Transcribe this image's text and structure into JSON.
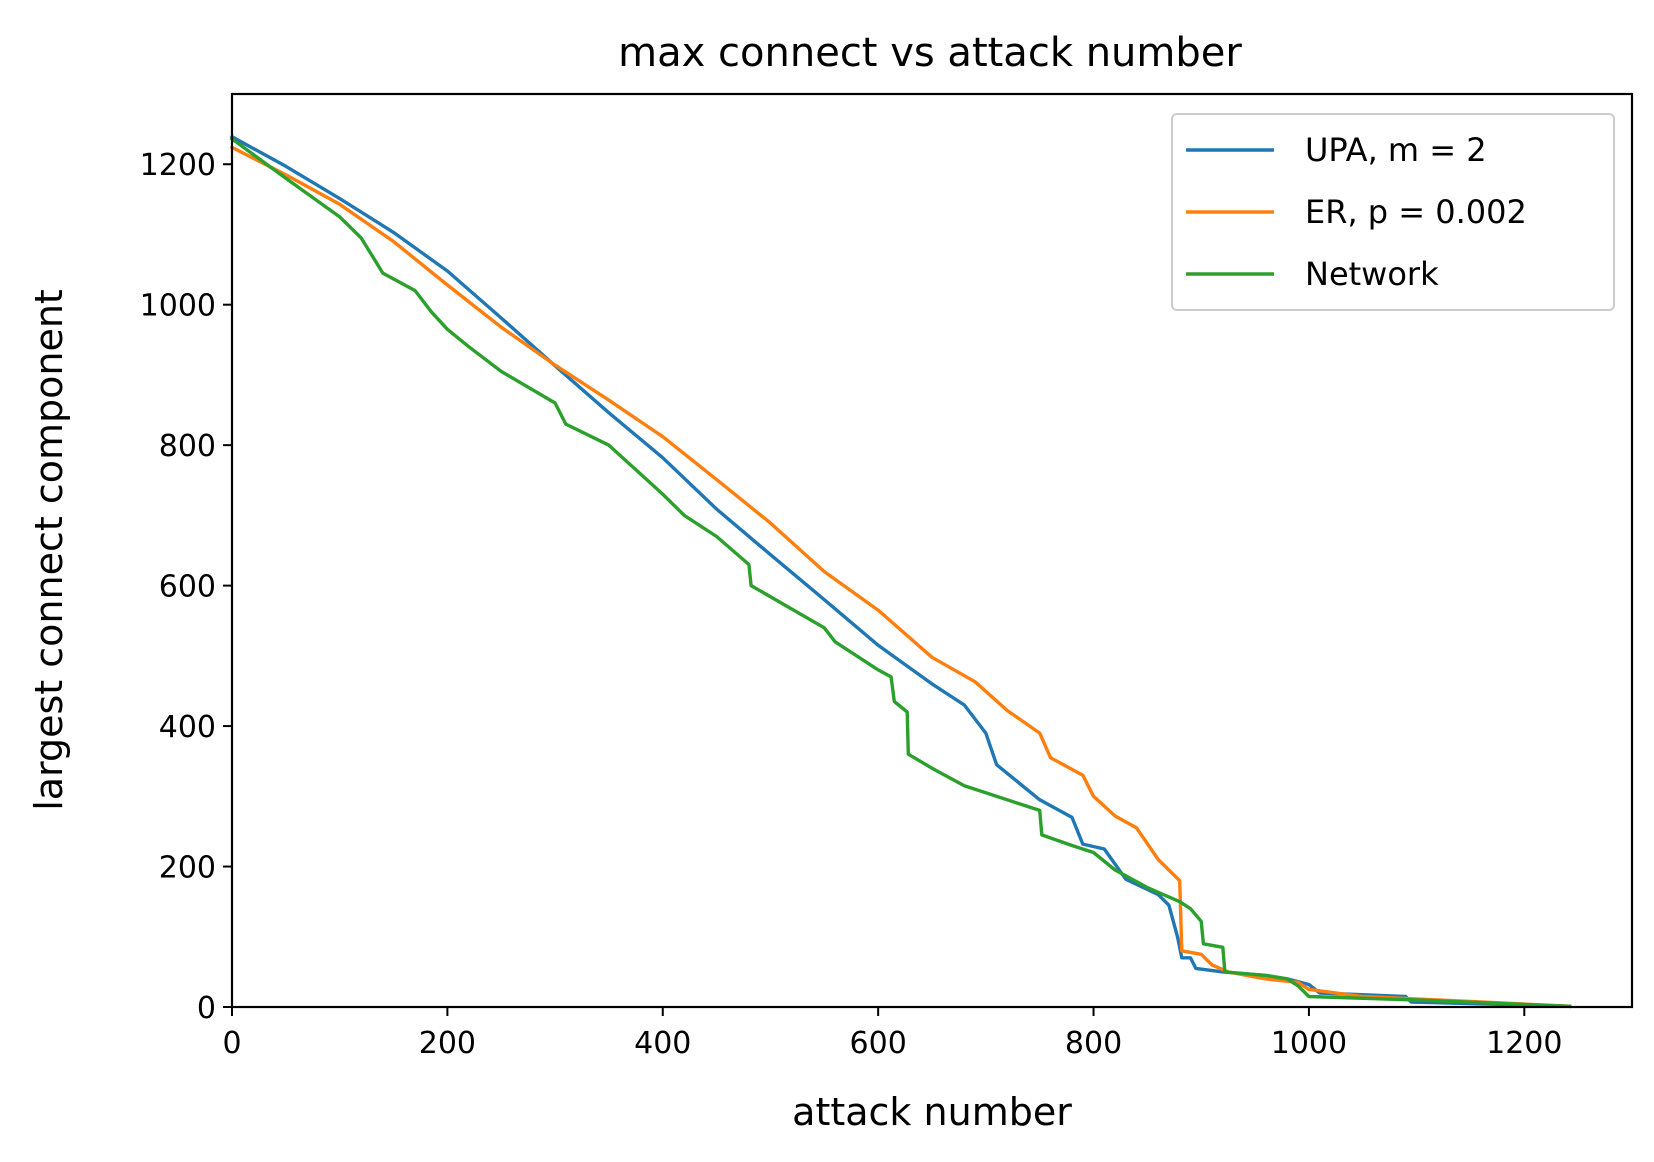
{
  "chart_data": {
    "type": "line",
    "title": "max connect vs attack number",
    "xlabel": "attack number",
    "ylabel": "largest connect component",
    "xlim": [
      0,
      1300
    ],
    "ylim": [
      0,
      1300
    ],
    "x_ticks": [
      0,
      200,
      400,
      600,
      800,
      1000,
      1200
    ],
    "y_ticks": [
      0,
      200,
      400,
      600,
      800,
      1000,
      1200
    ],
    "grid": false,
    "legend_position": "top-right",
    "series": [
      {
        "name": "UPA, m = 2",
        "color": "#1f77b4",
        "points": [
          [
            0,
            1239
          ],
          [
            50,
            1197
          ],
          [
            100,
            1151
          ],
          [
            150,
            1103
          ],
          [
            200,
            1048
          ],
          [
            250,
            981
          ],
          [
            300,
            913
          ],
          [
            350,
            846
          ],
          [
            400,
            782
          ],
          [
            450,
            709
          ],
          [
            500,
            644
          ],
          [
            550,
            580
          ],
          [
            600,
            515
          ],
          [
            650,
            460
          ],
          [
            680,
            430
          ],
          [
            700,
            390
          ],
          [
            710,
            345
          ],
          [
            750,
            295
          ],
          [
            780,
            270
          ],
          [
            790,
            232
          ],
          [
            810,
            225
          ],
          [
            830,
            182
          ],
          [
            860,
            160
          ],
          [
            870,
            145
          ],
          [
            878,
            100
          ],
          [
            882,
            70
          ],
          [
            890,
            70
          ],
          [
            895,
            55
          ],
          [
            920,
            50
          ],
          [
            960,
            45
          ],
          [
            980,
            40
          ],
          [
            1000,
            32
          ],
          [
            1010,
            20
          ],
          [
            1090,
            15
          ],
          [
            1095,
            7
          ],
          [
            1150,
            5
          ],
          [
            1242,
            1
          ]
        ]
      },
      {
        "name": "ER, p = 0.002",
        "color": "#ff7f0e",
        "points": [
          [
            0,
            1224
          ],
          [
            50,
            1185
          ],
          [
            100,
            1143
          ],
          [
            150,
            1090
          ],
          [
            200,
            1028
          ],
          [
            250,
            968
          ],
          [
            300,
            914
          ],
          [
            350,
            864
          ],
          [
            400,
            812
          ],
          [
            450,
            751
          ],
          [
            500,
            689
          ],
          [
            550,
            620
          ],
          [
            600,
            565
          ],
          [
            650,
            498
          ],
          [
            690,
            463
          ],
          [
            720,
            422
          ],
          [
            750,
            390
          ],
          [
            760,
            355
          ],
          [
            790,
            330
          ],
          [
            800,
            300
          ],
          [
            820,
            272
          ],
          [
            840,
            255
          ],
          [
            860,
            210
          ],
          [
            880,
            180
          ],
          [
            882,
            80
          ],
          [
            900,
            75
          ],
          [
            910,
            60
          ],
          [
            925,
            50
          ],
          [
            960,
            40
          ],
          [
            990,
            35
          ],
          [
            1000,
            25
          ],
          [
            1050,
            15
          ],
          [
            1150,
            8
          ],
          [
            1242,
            1
          ]
        ]
      },
      {
        "name": "Network",
        "color": "#2ca02c",
        "points": [
          [
            0,
            1236
          ],
          [
            50,
            1180
          ],
          [
            100,
            1125
          ],
          [
            120,
            1095
          ],
          [
            130,
            1070
          ],
          [
            140,
            1045
          ],
          [
            170,
            1020
          ],
          [
            185,
            990
          ],
          [
            200,
            965
          ],
          [
            220,
            940
          ],
          [
            250,
            905
          ],
          [
            300,
            860
          ],
          [
            310,
            830
          ],
          [
            350,
            800
          ],
          [
            400,
            730
          ],
          [
            420,
            700
          ],
          [
            450,
            670
          ],
          [
            480,
            630
          ],
          [
            482,
            600
          ],
          [
            550,
            540
          ],
          [
            560,
            520
          ],
          [
            600,
            480
          ],
          [
            612,
            470
          ],
          [
            615,
            435
          ],
          [
            627,
            420
          ],
          [
            628,
            360
          ],
          [
            650,
            340
          ],
          [
            680,
            315
          ],
          [
            700,
            305
          ],
          [
            750,
            280
          ],
          [
            752,
            245
          ],
          [
            780,
            230
          ],
          [
            800,
            220
          ],
          [
            820,
            195
          ],
          [
            850,
            170
          ],
          [
            880,
            150
          ],
          [
            890,
            140
          ],
          [
            900,
            122
          ],
          [
            902,
            90
          ],
          [
            920,
            85
          ],
          [
            922,
            50
          ],
          [
            960,
            45
          ],
          [
            980,
            40
          ],
          [
            990,
            30
          ],
          [
            1000,
            15
          ],
          [
            1100,
            10
          ],
          [
            1242,
            1
          ]
        ]
      }
    ]
  }
}
